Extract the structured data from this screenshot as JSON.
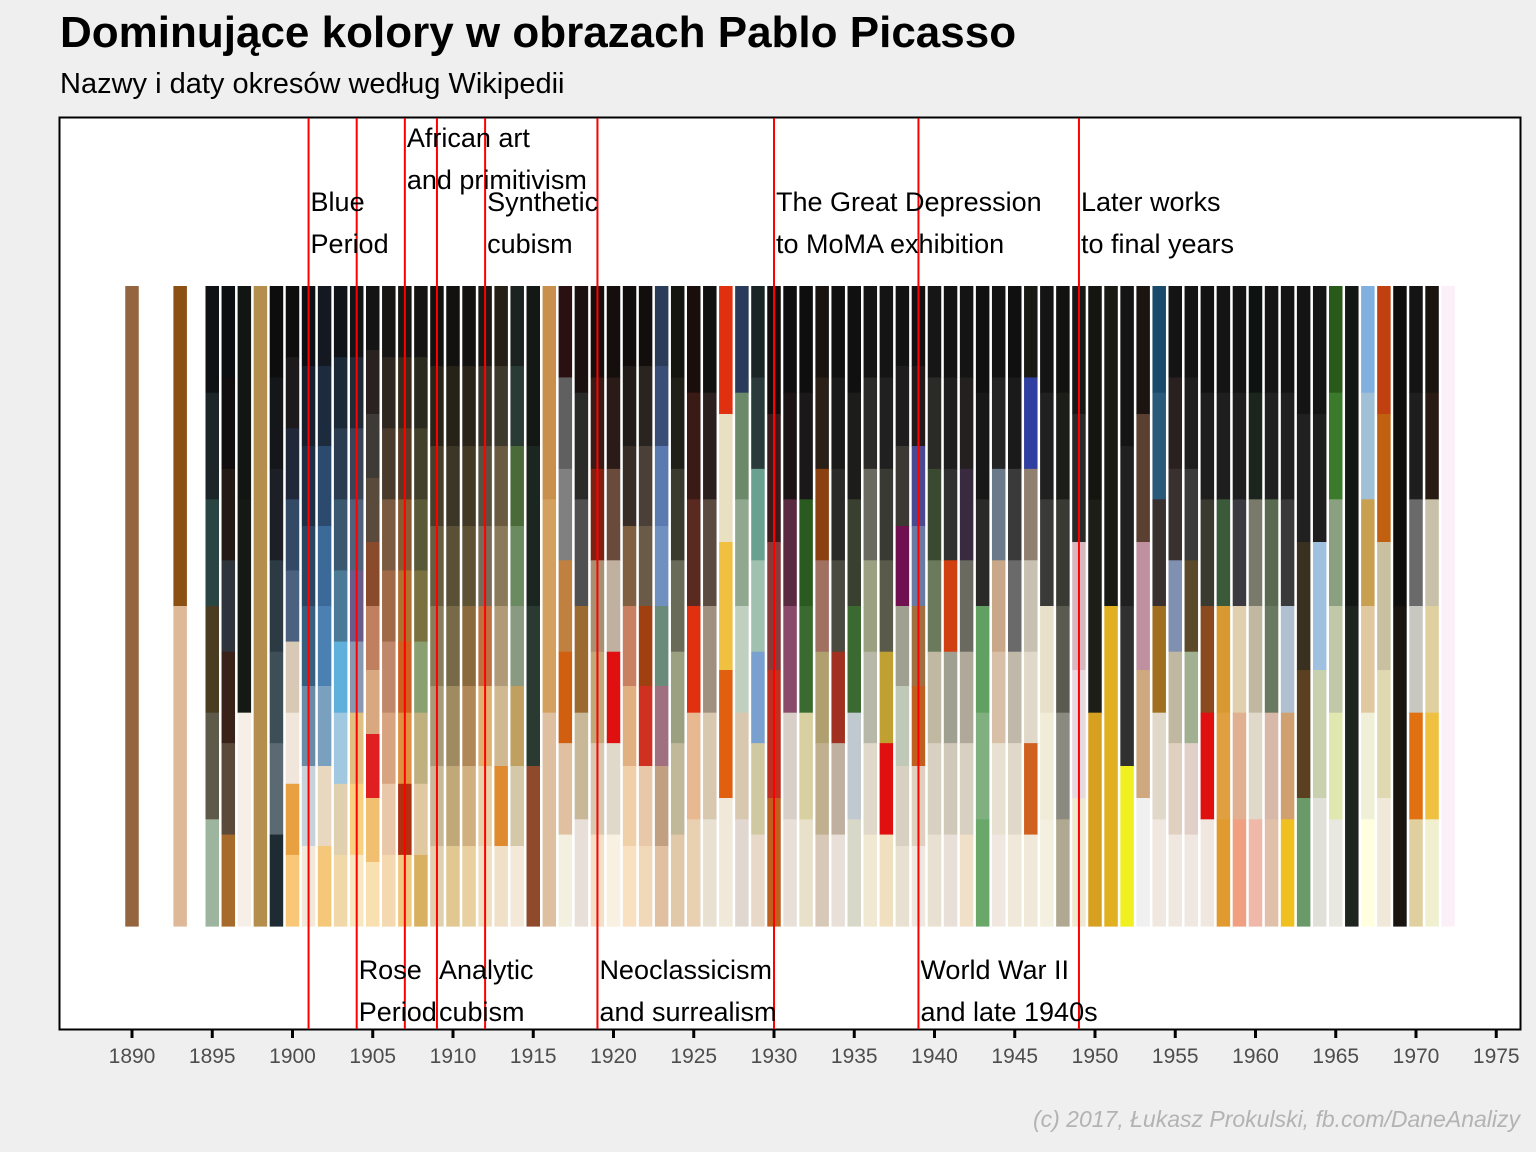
{
  "title": "Dominujące kolory w obrazach Pablo Picasso",
  "subtitle": "Nazwy i daty okresów według Wikipedii",
  "credit": "(c) 2017, Łukasz Prokulski, fb.com/DaneAnalizy",
  "chart_data": {
    "type": "bar",
    "description_kind": "stacked color bars per year",
    "xlim": [
      1885.5,
      1976
    ],
    "x_ticks": [
      1890,
      1895,
      1900,
      1905,
      1910,
      1915,
      1920,
      1925,
      1930,
      1935,
      1940,
      1945,
      1950,
      1955,
      1960,
      1965,
      1970,
      1975
    ],
    "grid": false,
    "period_lines": [
      1901,
      1904,
      1907,
      1909,
      1912,
      1919,
      1930,
      1939,
      1949
    ],
    "periods": [
      {
        "start": 1901,
        "lines": [
          "Blue",
          "Period"
        ],
        "position": "top-upper"
      },
      {
        "start": 1904,
        "lines": [
          "Rose",
          "Period"
        ],
        "position": "bottom"
      },
      {
        "start": 1907,
        "lines": [
          "African art",
          "and primitivism"
        ],
        "position": "top-high"
      },
      {
        "start": 1909,
        "lines": [
          "Analytic",
          "cubism"
        ],
        "position": "bottom"
      },
      {
        "start": 1912,
        "lines": [
          "Synthetic",
          "cubism"
        ],
        "position": "top-upper"
      },
      {
        "start": 1919,
        "lines": [
          "Neoclassicism",
          "and surrealism"
        ],
        "position": "bottom"
      },
      {
        "start": 1930,
        "lines": [
          "The Great Depression",
          "to MoMA exhibition"
        ],
        "position": "top-upper"
      },
      {
        "start": 1939,
        "lines": [
          "World War II",
          "and late 1940s"
        ],
        "position": "bottom"
      },
      {
        "start": 1949,
        "lines": [
          "Later works",
          "to final years"
        ],
        "position": "top-upper"
      }
    ],
    "years": [
      {
        "year": 1890,
        "colors": [
          "#956540"
        ]
      },
      {
        "year": 1893,
        "colors": [
          "#8b5012",
          "#deb998"
        ]
      },
      {
        "year": 1895,
        "colors": [
          "#0e1214",
          "#1c2628",
          "#294442",
          "#4a3c20",
          "#5e5a4a",
          "#9db49e"
        ]
      },
      {
        "year": 1896,
        "colors": [
          "#0b0f11",
          "#120d0e",
          "#231a16",
          "#2f333c",
          "#3b2219",
          "#5b4a3a",
          "#a66a2b"
        ]
      },
      {
        "year": 1897,
        "colors": [
          "#111612",
          "#141914",
          "#f6efe8"
        ]
      },
      {
        "year": 1898,
        "colors": [
          "#b48e4c"
        ]
      },
      {
        "year": 1899,
        "colors": [
          "#0d0d0e",
          "#141619",
          "#1c1f26",
          "#2c3a44",
          "#3e4e56",
          "#5b6a72",
          "#1e2b32"
        ]
      },
      {
        "year": 1900,
        "colors": [
          "#0f0e0f",
          "#1d1a1c",
          "#20283a",
          "#324a66",
          "#4a6280",
          "#d8c9b6",
          "#f0e6dc",
          "#e8a040",
          "#f8c878"
        ]
      },
      {
        "year": 1901,
        "colors": [
          "#0c0f14",
          "#16202e",
          "#1f3046",
          "#2a4660",
          "#3a5e7e",
          "#6a8aa6",
          "#c8d2da",
          "#f4e8d8"
        ]
      },
      {
        "year": 1902,
        "colors": [
          "#141820",
          "#1c2c3e",
          "#2c4a6e",
          "#3c6a98",
          "#4a80b2",
          "#7aa0c0",
          "#e8d8c0",
          "#f4c878"
        ]
      },
      {
        "year": 1903,
        "colors": [
          "#0f1218",
          "#1a2838",
          "#2a3c50",
          "#3a5870",
          "#4a7a96",
          "#60b0dc",
          "#a0c8e0",
          "#e0d0b0",
          "#f0d8a8"
        ]
      },
      {
        "year": 1904,
        "colors": [
          "#121418",
          "#222a36",
          "#3a4456",
          "#52607a",
          "#6a5a8a",
          "#8898b0",
          "#e0c080",
          "#f8d080",
          "#f8e8c0"
        ]
      },
      {
        "year": 1905,
        "colors": [
          "#141414",
          "#2a2220",
          "#3e3a36",
          "#5a4a3c",
          "#8a4a2c",
          "#c08060",
          "#d8a880",
          "#e02020",
          "#f0c070",
          "#f8e0b0"
        ]
      },
      {
        "year": 1906,
        "colors": [
          "#181614",
          "#2e2620",
          "#4a3a2c",
          "#7a5a40",
          "#a06a48",
          "#c0886a",
          "#d8a480",
          "#e8c8a8",
          "#f4d8b0"
        ]
      },
      {
        "year": 1907,
        "colors": [
          "#1a1612",
          "#3a2a1c",
          "#5a3a24",
          "#8a5a30",
          "#b07030",
          "#d06020",
          "#e09040",
          "#b03010",
          "#f0c880"
        ]
      },
      {
        "year": 1908,
        "colors": [
          "#151412",
          "#2a2a1e",
          "#42402a",
          "#5a5a38",
          "#7a7040",
          "#8aa070",
          "#c0b080",
          "#e0c8a0",
          "#d8b060"
        ]
      },
      {
        "year": 1909,
        "colors": [
          "#131210",
          "#2a2418",
          "#4a3e2a",
          "#6a5c40",
          "#8a7c5a",
          "#a89a78",
          "#c8b898",
          "#e0d0b0"
        ]
      },
      {
        "year": 1910,
        "colors": [
          "#121110",
          "#262218",
          "#3c3626",
          "#5a5036",
          "#786a48",
          "#a08a60",
          "#c0a878",
          "#e0c890"
        ]
      },
      {
        "year": 1911,
        "colors": [
          "#141210",
          "#2a2418",
          "#423a24",
          "#5e5234",
          "#8a6a3c",
          "#b08858",
          "#d0b080",
          "#e8d0a0"
        ]
      },
      {
        "year": 1912,
        "colors": [
          "#1a1814",
          "#3a3428",
          "#5a5040",
          "#7a6a58",
          "#c07040",
          "#e0b070",
          "#e8d0a8",
          "#f0e0c0"
        ]
      },
      {
        "year": 1913,
        "colors": [
          "#242018",
          "#3c3a2c",
          "#6a5a40",
          "#8a7a5a",
          "#b09a78",
          "#d0b890",
          "#e08a30",
          "#f0e0c8"
        ]
      },
      {
        "year": 1914,
        "colors": [
          "#1c2220",
          "#2a3a34",
          "#4a6a3a",
          "#6a8a60",
          "#8a9a80",
          "#c0a060",
          "#d4c8a8",
          "#f4e8d8"
        ]
      },
      {
        "year": 1915,
        "colors": [
          "#141814",
          "#1c2620",
          "#2a3a30",
          "#8e4a2a"
        ]
      },
      {
        "year": 1916,
        "colors": [
          "#c8904c",
          "#d4a060",
          "#dec0a0"
        ]
      },
      {
        "year": 1917,
        "colors": [
          "#2a1010",
          "#606060",
          "#808080",
          "#c08040",
          "#d06010",
          "#e0c0a0",
          "#f4f0e0"
        ]
      },
      {
        "year": 1918,
        "colors": [
          "#1a1010",
          "#2a2a28",
          "#505050",
          "#9a6a30",
          "#c8b898",
          "#e8e0d8"
        ]
      },
      {
        "year": 1919,
        "colors": [
          "#1a0e0c",
          "#3a1a14",
          "#802010",
          "#a89070",
          "#c0a878",
          "#d8c8b0",
          "#f4e0c8"
        ]
      },
      {
        "year": 1920,
        "colors": [
          "#140e0c",
          "#2a1a18",
          "#6a4a3a",
          "#c0b0a0",
          "#e01010",
          "#e0d8c8",
          "#f8f0e0"
        ]
      },
      {
        "year": 1921,
        "colors": [
          "#100c0c",
          "#201a18",
          "#382c26",
          "#806040",
          "#c88060",
          "#e0b080",
          "#f0d0a8",
          "#f8e0c0"
        ]
      },
      {
        "year": 1922,
        "colors": [
          "#120e0e",
          "#2a2420",
          "#4a4038",
          "#6a5a48",
          "#a04010",
          "#d03020",
          "#e8c8a8",
          "#f0d8b8"
        ]
      },
      {
        "year": 1923,
        "colors": [
          "#2a3c58",
          "#3a4e78",
          "#5a7ab0",
          "#7090c0",
          "#6a8a7a",
          "#a07080",
          "#c0a080",
          "#e0c0a0"
        ]
      },
      {
        "year": 1924,
        "colors": [
          "#141410",
          "#202018",
          "#3a3a2e",
          "#6a6a58",
          "#9aa080",
          "#c0b898",
          "#e0c8a8"
        ]
      },
      {
        "year": 1925,
        "colors": [
          "#1a0e0c",
          "#3a1a14",
          "#5a2a20",
          "#e03010",
          "#e8b890",
          "#e8d0b0"
        ]
      },
      {
        "year": 1926,
        "colors": [
          "#101010",
          "#2a2020",
          "#5a4a40",
          "#a09080",
          "#d8c8b0",
          "#e8e0d0"
        ]
      },
      {
        "year": 1927,
        "colors": [
          "#e03010",
          "#e8e0c0",
          "#f0c040",
          "#e06010",
          "#f0e8d8"
        ]
      },
      {
        "year": 1928,
        "colors": [
          "#2a3a5a",
          "#6a8a6a",
          "#90a890",
          "#c0d0c0",
          "#d8c8b0",
          "#e0d8d0"
        ]
      },
      {
        "year": 1929,
        "colors": [
          "#1a2424",
          "#2a3a3a",
          "#6aa090",
          "#a0c0b0",
          "#7aa0d0",
          "#d0c8a0",
          "#e8d8c8"
        ]
      },
      {
        "year": 1930,
        "colors": [
          "#140c0c",
          "#3a1a1a",
          "#8a3a3a",
          "#c03020",
          "#c06020"
        ]
      },
      {
        "year": 1931,
        "colors": [
          "#0e0e0e",
          "#1a1414",
          "#5a2a40",
          "#8a4a6a",
          "#d8d0c8",
          "#e8e0d8"
        ]
      },
      {
        "year": 1932,
        "colors": [
          "#0e0e0e",
          "#1a1818",
          "#2a5a20",
          "#3a6a30",
          "#d8d0a0",
          "#e8e0c8"
        ]
      },
      {
        "year": 1933,
        "colors": [
          "#1a1410",
          "#2a2018",
          "#8a4010",
          "#a07060",
          "#b0a070",
          "#c0b090",
          "#d8c8b8"
        ]
      },
      {
        "year": 1934,
        "colors": [
          "#101010",
          "#1a1a1a",
          "#2a2a28",
          "#4a4a40",
          "#a03020",
          "#c0b0a0",
          "#e8e0d8"
        ]
      },
      {
        "year": 1935,
        "colors": [
          "#101010",
          "#1c1c1a",
          "#3a4030",
          "#3a6a30",
          "#c0c8d0",
          "#d8d8c8"
        ]
      },
      {
        "year": 1936,
        "colors": [
          "#141414",
          "#2a2a28",
          "#6a6a60",
          "#9aa080",
          "#b8b8a8",
          "#e0d8c8",
          "#f0e8d0"
        ]
      },
      {
        "year": 1937,
        "colors": [
          "#141414",
          "#202020",
          "#3a3a34",
          "#5a5a4a",
          "#c0a030",
          "#e01010",
          "#f0e0c0"
        ]
      },
      {
        "year": 1938,
        "colors": [
          "#121212",
          "#1e1c1c",
          "#3c3834",
          "#701050",
          "#a0a090",
          "#c0c8b8",
          "#d8d0c0",
          "#e8e0d0"
        ]
      },
      {
        "year": 1939,
        "colors": [
          "#141012",
          "#241a1c",
          "#4a4a90",
          "#6a7aa0",
          "#a07040",
          "#c06020",
          "#e0d0c0",
          "#f0e8e0"
        ]
      },
      {
        "year": 1940,
        "colors": [
          "#161616",
          "#2a2a26",
          "#3a4a30",
          "#6a7a5a",
          "#c0b8a0",
          "#d8d0c0",
          "#e8e0d0"
        ]
      },
      {
        "year": 1941,
        "colors": [
          "#121212",
          "#1e1e1e",
          "#303030",
          "#d04010",
          "#a0a090",
          "#d0c8b8",
          "#e8e0d8"
        ]
      },
      {
        "year": 1942,
        "colors": [
          "#141414",
          "#242020",
          "#3a2a40",
          "#6a6a60",
          "#b0a898",
          "#d8d0c0",
          "#f0e0c8"
        ]
      },
      {
        "year": 1943,
        "colors": [
          "#101010",
          "#181818",
          "#2a2a28",
          "#60a060",
          "#80b080",
          "#6aa86a"
        ]
      },
      {
        "year": 1944,
        "colors": [
          "#141414",
          "#242424",
          "#6a7a8a",
          "#c8a888",
          "#d8c0a8",
          "#e8e0d0",
          "#f0e8e0"
        ]
      },
      {
        "year": 1945,
        "colors": [
          "#101010",
          "#1a1a1a",
          "#3a3a3a",
          "#6a6a6a",
          "#c0b8a8",
          "#e0d8c8",
          "#f0e8d8"
        ]
      },
      {
        "year": 1946,
        "colors": [
          "#1a1a14",
          "#3040a0",
          "#908070",
          "#c8c0b0",
          "#e0d8c8",
          "#d06020",
          "#f0e8d8"
        ]
      },
      {
        "year": 1947,
        "colors": [
          "#141414",
          "#202020",
          "#3a3a38",
          "#e8e0c8",
          "#f0ecd8",
          "#f4f0e0"
        ]
      },
      {
        "year": 1948,
        "colors": [
          "#121210",
          "#1c1c18",
          "#3a3a34",
          "#5a5a50",
          "#8a8a80",
          "#b0a890"
        ]
      },
      {
        "year": 1949,
        "colors": [
          "#181818",
          "#2a2a2a",
          "#d8b8c0",
          "#e8d8e0",
          "#f0e8d0"
        ]
      },
      {
        "year": 1950,
        "colors": [
          "#141410",
          "#1e1e18",
          "#d8a020"
        ]
      },
      {
        "year": 1951,
        "colors": [
          "#1a1a14",
          "#e0b020"
        ]
      },
      {
        "year": 1952,
        "colors": [
          "#141414",
          "#202020",
          "#303030",
          "#f0f020"
        ]
      },
      {
        "year": 1953,
        "colors": [
          "#1c1410",
          "#5a4030",
          "#c090a0",
          "#d0a880",
          "#f0f0f0"
        ]
      },
      {
        "year": 1954,
        "colors": [
          "#1a4a6a",
          "#2a5a7a",
          "#3a3030",
          "#a07020",
          "#e0d8c8",
          "#f0e8e0"
        ]
      },
      {
        "year": 1955,
        "colors": [
          "#141414",
          "#2a2020",
          "#3a3030",
          "#8090b0",
          "#c0b8a0",
          "#e0d0c0",
          "#f0e8e0"
        ]
      },
      {
        "year": 1956,
        "colors": [
          "#141414",
          "#1e1e1e",
          "#3a3a3a",
          "#5a4a2a",
          "#a0b090",
          "#e0d0c8",
          "#f0e8e0"
        ]
      },
      {
        "year": 1957,
        "colors": [
          "#121212",
          "#1e1e1e",
          "#3a3a30",
          "#8a4a20",
          "#e01010",
          "#f0e8e0"
        ]
      },
      {
        "year": 1958,
        "colors": [
          "#141414",
          "#1e1e1e",
          "#3a5a3a",
          "#d89a30",
          "#e0a040",
          "#e09a30"
        ]
      },
      {
        "year": 1959,
        "colors": [
          "#141414",
          "#1e1e1e",
          "#3a3a40",
          "#e0d0b0",
          "#e0b090",
          "#f0a080"
        ]
      },
      {
        "year": 1960,
        "colors": [
          "#0e1210",
          "#1c241e",
          "#7a7a6a",
          "#c0b8a0",
          "#e0d8c8",
          "#f0b8a8"
        ]
      },
      {
        "year": 1961,
        "colors": [
          "#141414",
          "#202020",
          "#5a6a50",
          "#6a7a60",
          "#d8b8a8",
          "#e0c0a8"
        ]
      },
      {
        "year": 1962,
        "colors": [
          "#141414",
          "#202020",
          "#3a3a3a",
          "#b0c0d0",
          "#d0a070",
          "#f0c020"
        ]
      },
      {
        "year": 1963,
        "colors": [
          "#141414",
          "#202020",
          "#3a3020",
          "#5a4020",
          "#6a9a6a"
        ]
      },
      {
        "year": 1964,
        "colors": [
          "#141414",
          "#1e1e1e",
          "#a0c0e0",
          "#c8d0b0",
          "#e0e0d8"
        ]
      },
      {
        "year": 1965,
        "colors": [
          "#2a5a1a",
          "#3a7a2a",
          "#8aa080",
          "#c0c8a8",
          "#e0e8b0",
          "#e8e8e0"
        ]
      },
      {
        "year": 1966,
        "colors": [
          "#141814",
          "#1e241e"
        ]
      },
      {
        "year": 1967,
        "colors": [
          "#80b0e0",
          "#a0c0d8",
          "#c8a050",
          "#e0c8a0",
          "#f0f0d8",
          "#ffffe0"
        ]
      },
      {
        "year": 1968,
        "colors": [
          "#c04010",
          "#c06010",
          "#c8c0a0",
          "#e0d8b0",
          "#f0e8d8"
        ]
      },
      {
        "year": 1969,
        "colors": [
          "#100e0c",
          "#1a1410"
        ]
      },
      {
        "year": 1970,
        "colors": [
          "#141414",
          "#1e1e1e",
          "#6a6a6a",
          "#c8c8c0",
          "#e07010",
          "#e0d0a0"
        ]
      },
      {
        "year": 1971,
        "colors": [
          "#1a1410",
          "#2a1a14",
          "#c8c0a8",
          "#e0d0a0",
          "#f0c040",
          "#f0f0d0"
        ]
      },
      {
        "year": 1972,
        "colors": [
          "#fcf0f8"
        ]
      }
    ]
  }
}
